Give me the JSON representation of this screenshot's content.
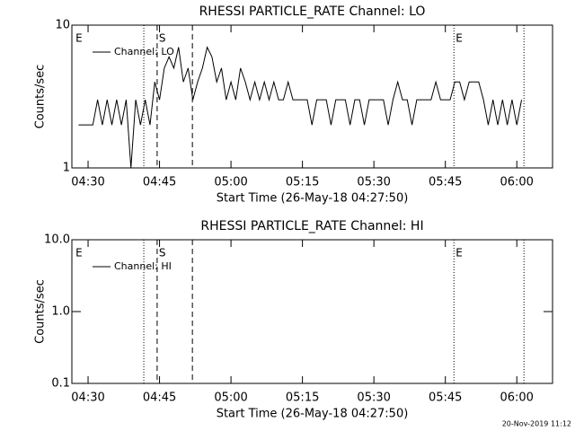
{
  "chart_data": [
    {
      "type": "line",
      "title": "RHESSI PARTICLE_RATE Channel: LO",
      "xlabel": "Start Time (26-May-18 04:27:50)",
      "ylabel": "Counts/sec",
      "x": [
        268,
        269,
        270,
        271,
        272,
        273,
        274,
        275,
        276,
        277,
        278,
        279,
        280,
        281,
        282,
        283,
        284,
        285,
        286,
        287,
        288,
        289,
        290,
        291,
        292,
        293,
        294,
        295,
        296,
        297,
        298,
        299,
        300,
        301,
        302,
        303,
        304,
        305,
        306,
        307,
        308,
        309,
        310,
        311,
        312,
        313,
        314,
        315,
        316,
        317,
        318,
        319,
        320,
        321,
        322,
        323,
        324,
        325,
        326,
        327,
        328,
        329,
        330,
        331,
        332,
        333,
        334,
        335,
        336,
        337,
        338,
        339,
        340,
        341,
        342,
        343,
        344,
        345,
        346,
        347,
        348,
        349,
        350,
        351,
        352,
        353,
        354,
        355,
        356,
        357,
        358,
        359,
        360,
        361
      ],
      "series": [
        {
          "name": "Channel: LO",
          "color": "#000000",
          "values": [
            2,
            2,
            2,
            2,
            3,
            2,
            3,
            2,
            3,
            2,
            3,
            1,
            3,
            2,
            3,
            2,
            4,
            3,
            5,
            6,
            5,
            7,
            4,
            5,
            3,
            4,
            5,
            7,
            6,
            4,
            5,
            3,
            4,
            3,
            5,
            4,
            3,
            4,
            3,
            4,
            3,
            4,
            3,
            3,
            4,
            3,
            3,
            3,
            3,
            2,
            3,
            3,
            3,
            2,
            3,
            3,
            3,
            2,
            3,
            3,
            2,
            3,
            3,
            3,
            3,
            2,
            3,
            4,
            3,
            3,
            2,
            3,
            3,
            3,
            3,
            4,
            3,
            3,
            3,
            4,
            4,
            3,
            4,
            4,
            4,
            3,
            2,
            3,
            2,
            3,
            2,
            3,
            2,
            3
          ]
        }
      ],
      "xlim": [
        266.6,
        367.5
      ],
      "xticks": [
        {
          "value": 270,
          "label": "04:30"
        },
        {
          "value": 285,
          "label": "04:45"
        },
        {
          "value": 300,
          "label": "05:00"
        },
        {
          "value": 315,
          "label": "05:15"
        },
        {
          "value": 330,
          "label": "05:30"
        },
        {
          "value": 345,
          "label": "05:45"
        },
        {
          "value": 360,
          "label": "06:00"
        }
      ],
      "ylim": [
        1,
        10
      ],
      "yticks": [
        1,
        10
      ],
      "log_y": true,
      "legend": "top-left",
      "vlines": [
        {
          "x": 281.7,
          "style": "dotted"
        },
        {
          "x": 284.5,
          "style": "dashed"
        },
        {
          "x": 291.9,
          "style": "dashed"
        },
        {
          "x": 346.8,
          "style": "dotted"
        },
        {
          "x": 361.5,
          "style": "dotted"
        }
      ],
      "annotations": [
        {
          "x": 267.0,
          "text": "E"
        },
        {
          "x": 284.5,
          "text": "S"
        },
        {
          "x": 346.8,
          "text": "E"
        }
      ]
    },
    {
      "type": "line",
      "title": "RHESSI PARTICLE_RATE Channel: HI",
      "xlabel": "Start Time (26-May-18 04:27:50)",
      "ylabel": "Counts/sec",
      "x": [],
      "series": [
        {
          "name": "Channel: HI",
          "color": "#000000",
          "values": []
        }
      ],
      "xlim": [
        266.6,
        367.5
      ],
      "xticks": [
        {
          "value": 270,
          "label": "04:30"
        },
        {
          "value": 285,
          "label": "04:45"
        },
        {
          "value": 300,
          "label": "05:00"
        },
        {
          "value": 315,
          "label": "05:15"
        },
        {
          "value": 330,
          "label": "05:30"
        },
        {
          "value": 345,
          "label": "05:45"
        },
        {
          "value": 360,
          "label": "06:00"
        }
      ],
      "ylim": [
        0.1,
        10
      ],
      "yticks": [
        {
          "value": 0.1,
          "label": "0.1"
        },
        {
          "value": 1,
          "label": "1.0"
        },
        {
          "value": 10,
          "label": "10.0"
        }
      ],
      "log_y": true,
      "legend": "top-left",
      "vlines": [
        {
          "x": 281.7,
          "style": "dotted"
        },
        {
          "x": 284.5,
          "style": "dashed"
        },
        {
          "x": 291.9,
          "style": "dashed"
        },
        {
          "x": 346.8,
          "style": "dotted"
        },
        {
          "x": 361.5,
          "style": "dotted"
        }
      ],
      "annotations": [
        {
          "x": 267.0,
          "text": "E"
        },
        {
          "x": 284.5,
          "text": "S"
        },
        {
          "x": 346.8,
          "text": "E"
        }
      ]
    }
  ],
  "footer": "20-Nov-2019 11:12"
}
